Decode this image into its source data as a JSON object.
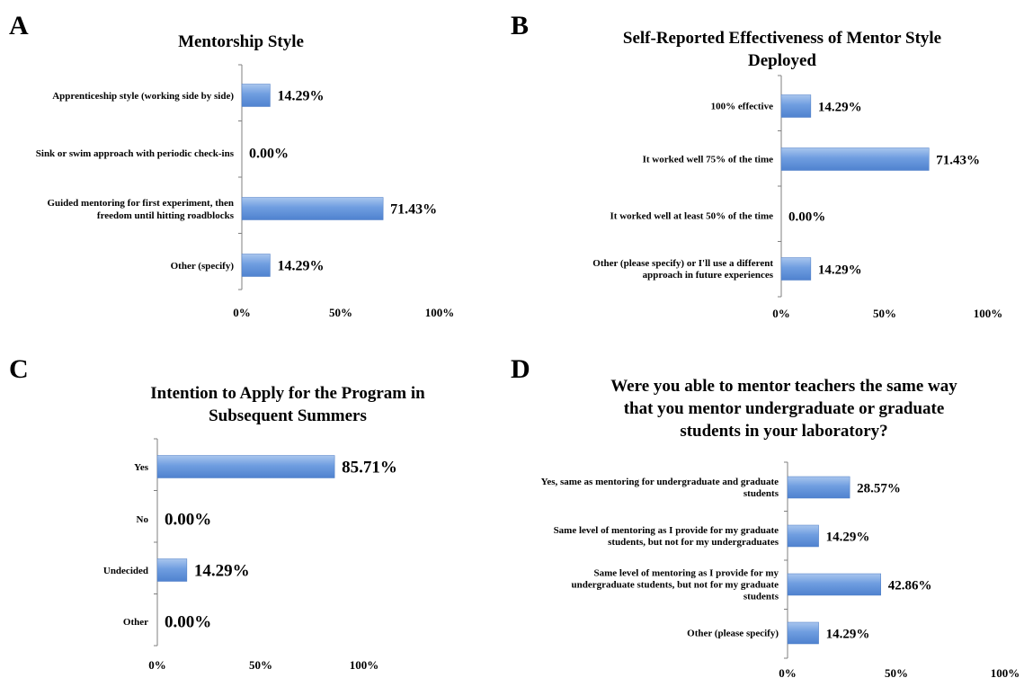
{
  "chart_data": [
    {
      "panel": "A",
      "type": "bar",
      "orientation": "horizontal",
      "title": "Mentorship Style",
      "categories": [
        "Apprenticeship style (working side by side)",
        "Sink or swim approach with periodic check-ins",
        "Guided mentoring for first experiment, then freedom until hitting roadblocks",
        "Other (specify)"
      ],
      "values": [
        14.29,
        0.0,
        71.43,
        14.29
      ],
      "value_labels": [
        "14.29%",
        "0.00%",
        "71.43%",
        "14.29%"
      ],
      "xlim": [
        0,
        100
      ],
      "xticks": [
        "0%",
        "50%",
        "100%"
      ],
      "grid": false
    },
    {
      "panel": "B",
      "type": "bar",
      "orientation": "horizontal",
      "title": "Self-Reported Effectiveness of Mentor Style Deployed",
      "categories": [
        "100% effective",
        "It worked well 75% of the time",
        "It worked well at least 50% of the time",
        "Other (please specify) or I'll use a different approach in future experiences"
      ],
      "values": [
        14.29,
        71.43,
        0.0,
        14.29
      ],
      "value_labels": [
        "14.29%",
        "71.43%",
        "0.00%",
        "14.29%"
      ],
      "xlim": [
        0,
        100
      ],
      "xticks": [
        "0%",
        "50%",
        "100%"
      ],
      "grid": false
    },
    {
      "panel": "C",
      "type": "bar",
      "orientation": "horizontal",
      "title": "Intention to Apply for the Program in Subsequent Summers",
      "categories": [
        "Yes",
        "No",
        "Undecided",
        "Other"
      ],
      "values": [
        85.71,
        0.0,
        14.29,
        0.0
      ],
      "value_labels": [
        "85.71%",
        "0.00%",
        "14.29%",
        "0.00%"
      ],
      "xlim": [
        0,
        100
      ],
      "xticks": [
        "0%",
        "50%",
        "100%"
      ],
      "grid": false
    },
    {
      "panel": "D",
      "type": "bar",
      "orientation": "horizontal",
      "title": "Were you able to mentor teachers the same way that you mentor undergraduate or graduate students in your laboratory?",
      "categories": [
        "Yes, same as mentoring for undergraduate and graduate students",
        "Same level of mentoring as I provide for my graduate students, but not for my undergraduates",
        "Same level of mentoring as I provide for my undergraduate students, but not for my graduate students",
        "Other (please specify)"
      ],
      "values": [
        28.57,
        14.29,
        42.86,
        14.29
      ],
      "value_labels": [
        "28.57%",
        "14.29%",
        "42.86%",
        "14.29%"
      ],
      "xlim": [
        0,
        100
      ],
      "xticks": [
        "0%",
        "50%",
        "100%"
      ],
      "grid": false
    }
  ],
  "colors": {
    "bar_top": "#a9c6ee",
    "bar_mid": "#6f9de0",
    "bar_bottom": "#4f82cf",
    "axis": "#7f7f7f"
  }
}
